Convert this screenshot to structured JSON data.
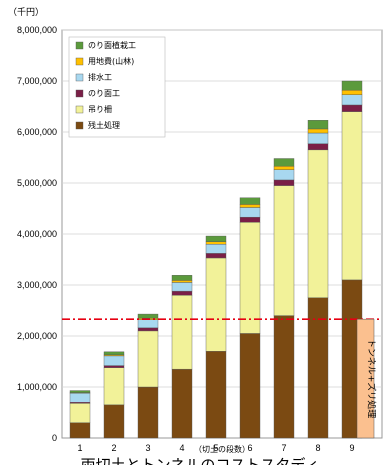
{
  "chart_data": {
    "type": "bar",
    "stacked": true,
    "title": "両切土とトンネルのコストスタディ",
    "unit_label": "（千円）",
    "xlabel": "（切土の段数）",
    "categories": [
      "1",
      "2",
      "3",
      "4",
      "5",
      "6",
      "7",
      "8",
      "9"
    ],
    "ylim": [
      0,
      8000000
    ],
    "y_ticks": [
      "0",
      "1,000,000",
      "2,000,000",
      "3,000,000",
      "4,000,000",
      "5,000,000",
      "6,000,000",
      "7,000,000",
      "8,000,000"
    ],
    "legend_placement": "top-left",
    "series": [
      {
        "name": "残土処理",
        "color": "#7b4a12",
        "values": [
          300000,
          650000,
          1000000,
          1350000,
          1700000,
          2050000,
          2400000,
          2750000,
          3100000
        ]
      },
      {
        "name": "吊り柵",
        "color": "#f2f299",
        "values": [
          380000,
          730000,
          1100000,
          1450000,
          1830000,
          2180000,
          2550000,
          2900000,
          3300000
        ]
      },
      {
        "name": "のり面工",
        "color": "#7a1f47",
        "values": [
          20000,
          40000,
          60000,
          80000,
          90000,
          100000,
          110000,
          120000,
          130000
        ]
      },
      {
        "name": "排水工",
        "color": "#a8d8f0",
        "values": [
          180000,
          190000,
          160000,
          170000,
          180000,
          190000,
          200000,
          210000,
          200000
        ]
      },
      {
        "name": "用地費(山林)",
        "color": "#ffc000",
        "values": [
          10000,
          20000,
          30000,
          40000,
          50000,
          60000,
          70000,
          80000,
          90000
        ]
      },
      {
        "name": "のり面植栽工",
        "color": "#5b9a3c",
        "values": [
          40000,
          60000,
          80000,
          100000,
          110000,
          130000,
          150000,
          170000,
          180000
        ]
      }
    ],
    "reference_line": {
      "value": 2330000,
      "color": "#e60012"
    },
    "tunnel_bar": {
      "label": "トンネル+ズリ処理",
      "value": 2330000,
      "color": "#fbc08f"
    }
  }
}
